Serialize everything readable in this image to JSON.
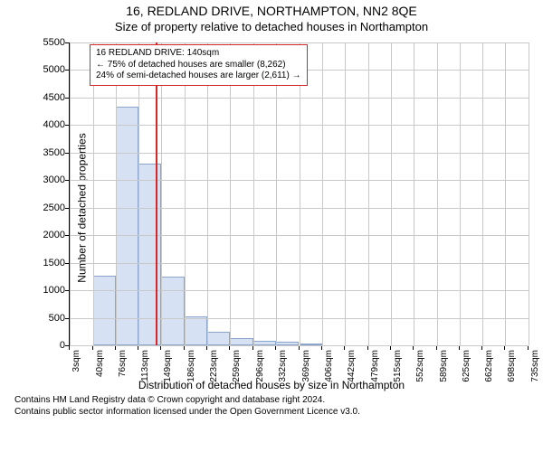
{
  "titles": {
    "main": "16, REDLAND DRIVE, NORTHAMPTON, NN2 8QE",
    "sub": "Size of property relative to detached houses in Northampton"
  },
  "chart": {
    "type": "histogram",
    "y_axis": {
      "label": "Number of detached properties",
      "min": 0,
      "max": 5500,
      "step": 500,
      "label_fontsize": 12,
      "tick_fontsize": 11
    },
    "x_axis": {
      "label": "Distribution of detached houses by size in Northampton",
      "labels": [
        "3sqm",
        "40sqm",
        "76sqm",
        "113sqm",
        "149sqm",
        "186sqm",
        "223sqm",
        "259sqm",
        "296sqm",
        "332sqm",
        "369sqm",
        "406sqm",
        "442sqm",
        "479sqm",
        "515sqm",
        "552sqm",
        "589sqm",
        "625sqm",
        "662sqm",
        "698sqm",
        "735sqm"
      ],
      "edges": [
        3,
        40,
        76,
        113,
        149,
        186,
        223,
        259,
        296,
        332,
        369,
        406,
        442,
        479,
        515,
        552,
        589,
        625,
        662,
        698,
        735
      ],
      "label_fontsize": 12,
      "tick_fontsize": 10
    },
    "bars": [
      0,
      1260,
      4330,
      3300,
      1240,
      520,
      250,
      130,
      80,
      60,
      40,
      0,
      0,
      0,
      0,
      0,
      0,
      0,
      0,
      0
    ],
    "marker": {
      "value": 140,
      "color": "#d62728"
    },
    "annotation": {
      "line1": "16 REDLAND DRIVE: 140sqm",
      "line2": "← 75% of detached houses are smaller (8,262)",
      "line3": "24% of semi-detached houses are larger (2,611) →",
      "border_color": "#d62728",
      "fontsize": 10
    },
    "colors": {
      "bar_fill": "#d6e2f3",
      "bar_stroke": "#8aa5c9",
      "grid": "#c9c9c9",
      "background": "#ffffff",
      "text": "#000000"
    }
  },
  "footer": {
    "line1": "Contains HM Land Registry data © Crown copyright and database right 2024.",
    "line2": "Contains public sector information licensed under the Open Government Licence v3.0."
  }
}
